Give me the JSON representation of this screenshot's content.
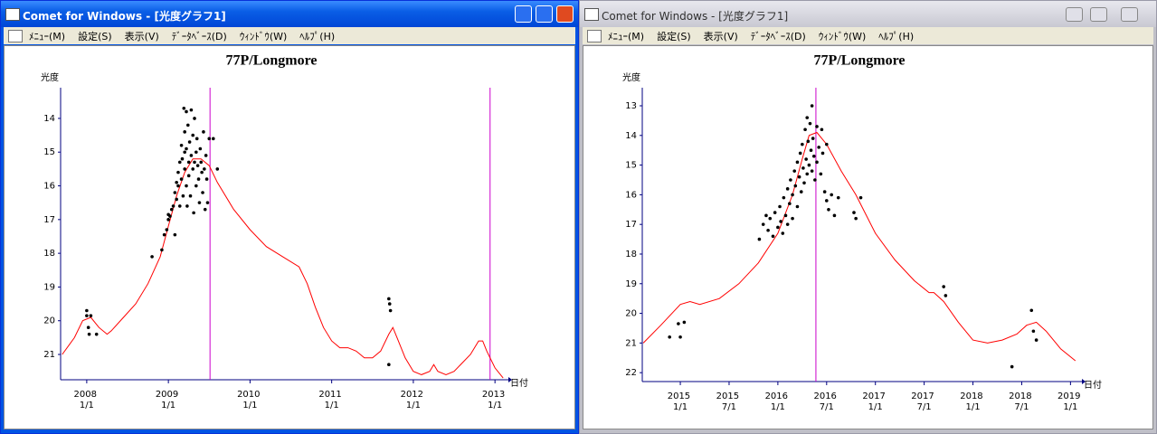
{
  "windows": [
    {
      "title": "Comet for Windows - [光度グラフ1]",
      "menu": [
        "ﾒﾆｭｰ(M)",
        "設定(S)",
        "表示(V)",
        "ﾃﾞｰﾀﾍﾞｰｽ(D)",
        "ｳｨﾝﾄﾞｳ(W)",
        "ﾍﾙﾌﾟ(H)"
      ]
    },
    {
      "title": "Comet for Windows - [光度グラフ1]",
      "menu": [
        "ﾒﾆｭｰ(M)",
        "設定(S)",
        "表示(V)",
        "ﾃﾞｰﾀﾍﾞｰｽ(D)",
        "ｳｨﾝﾄﾞｳ(W)",
        "ﾍﾙﾌﾟ(H)"
      ]
    }
  ],
  "chart_data": [
    {
      "type": "scatter",
      "title": "77P/Longmore",
      "y_label": "光度",
      "x_label": "日付",
      "xlim": [
        2007.68,
        2013.12
      ],
      "ylim": [
        21.75,
        13.09
      ],
      "xticks": [
        {
          "value": 2008,
          "label": "2008 1/1"
        },
        {
          "value": 2009,
          "label": "2009 1/1"
        },
        {
          "value": 2010,
          "label": "2010 1/1"
        },
        {
          "value": 2011,
          "label": "2011 1/1"
        },
        {
          "value": 2012,
          "label": "2012 1/1"
        },
        {
          "value": 2013,
          "label": "2013 1/1"
        }
      ],
      "yticks": [
        14,
        15,
        16,
        17,
        18,
        19,
        20,
        21
      ],
      "axis_color": "#000080",
      "color": "#000000",
      "x": [
        2008.0,
        2008.0,
        2008.02,
        2008.05,
        2008.03,
        2008.12,
        2008.8,
        2008.92,
        2008.95,
        2008.98,
        2009.0,
        2009.0,
        2009.02,
        2009.04,
        2009.06,
        2009.08,
        2009.08,
        2009.1,
        2009.1,
        2009.12,
        2009.12,
        2009.14,
        2009.14,
        2009.16,
        2009.16,
        2009.17,
        2009.18,
        2009.19,
        2009.2,
        2009.2,
        2009.2,
        2009.22,
        2009.22,
        2009.22,
        2009.23,
        2009.24,
        2009.25,
        2009.25,
        2009.26,
        2009.27,
        2009.28,
        2009.28,
        2009.3,
        2009.3,
        2009.31,
        2009.32,
        2009.32,
        2009.34,
        2009.34,
        2009.35,
        2009.36,
        2009.37,
        2009.38,
        2009.39,
        2009.4,
        2009.41,
        2009.42,
        2009.43,
        2009.44,
        2009.45,
        2009.46,
        2009.47,
        2009.48,
        2009.5,
        2009.55,
        2009.6,
        2011.7,
        2011.71,
        2011.72,
        2011.7
      ],
      "values": [
        19.7,
        19.85,
        20.2,
        19.85,
        20.4,
        20.4,
        18.1,
        17.9,
        17.45,
        17.3,
        17.0,
        16.85,
        16.9,
        16.7,
        16.6,
        16.2,
        17.45,
        15.9,
        16.4,
        15.6,
        16.0,
        15.3,
        16.6,
        14.8,
        15.8,
        15.2,
        16.3,
        13.7,
        14.4,
        15.0,
        15.5,
        13.8,
        14.9,
        16.0,
        16.6,
        14.2,
        15.3,
        15.7,
        14.7,
        16.3,
        13.75,
        15.1,
        14.5,
        15.5,
        16.8,
        14.0,
        15.3,
        15.0,
        16.0,
        14.6,
        15.4,
        15.8,
        16.5,
        14.9,
        15.3,
        15.6,
        16.2,
        14.4,
        15.5,
        16.7,
        15.1,
        15.8,
        16.5,
        14.6,
        14.6,
        15.5,
        19.35,
        19.5,
        19.7,
        21.3
      ],
      "curve": {
        "color": "#ff0000",
        "x": [
          2007.7,
          2007.85,
          2007.95,
          2008.05,
          2008.15,
          2008.25,
          2008.3,
          2008.45,
          2008.6,
          2008.75,
          2008.9,
          2009.0,
          2009.1,
          2009.2,
          2009.3,
          2009.4,
          2009.5,
          2009.6,
          2009.8,
          2010.0,
          2010.2,
          2010.4,
          2010.6,
          2010.7,
          2010.8,
          2010.9,
          2011.0,
          2011.1,
          2011.2,
          2011.3,
          2011.4,
          2011.5,
          2011.6,
          2011.7,
          2011.75,
          2011.8,
          2011.9,
          2012.0,
          2012.1,
          2012.2,
          2012.25,
          2012.3,
          2012.4,
          2012.5,
          2012.7,
          2012.8,
          2012.85,
          2012.9,
          2013.0,
          2013.1
        ],
        "values": [
          21.0,
          20.5,
          20.0,
          19.9,
          20.2,
          20.4,
          20.3,
          19.9,
          19.5,
          18.9,
          18.1,
          17.2,
          16.3,
          15.6,
          15.2,
          15.2,
          15.4,
          15.9,
          16.7,
          17.3,
          17.8,
          18.1,
          18.4,
          18.9,
          19.6,
          20.2,
          20.6,
          20.8,
          20.8,
          20.9,
          21.1,
          21.1,
          20.9,
          20.4,
          20.2,
          20.5,
          21.1,
          21.5,
          21.6,
          21.5,
          21.3,
          21.5,
          21.6,
          21.5,
          21.0,
          20.6,
          20.6,
          20.9,
          21.4,
          21.7
        ]
      },
      "vlines": {
        "color": "#cc00cc",
        "x": [
          2009.51,
          2012.94
        ]
      }
    },
    {
      "type": "scatter",
      "title": "77P/Longmore",
      "y_label": "光度",
      "x_label": "日付",
      "xlim": [
        2014.61,
        2019.08
      ],
      "ylim": [
        22.3,
        12.39
      ],
      "xticks": [
        {
          "value": 2015,
          "label": "2015 1/1"
        },
        {
          "value": 2015.5,
          "label": "2015 7/1"
        },
        {
          "value": 2016,
          "label": "2016 1/1"
        },
        {
          "value": 2016.5,
          "label": "2016 7/1"
        },
        {
          "value": 2017,
          "label": "2017 1/1"
        },
        {
          "value": 2017.5,
          "label": "2017 7/1"
        },
        {
          "value": 2018,
          "label": "2018 1/1"
        },
        {
          "value": 2018.5,
          "label": "2018 7/1"
        },
        {
          "value": 2019,
          "label": "2019 1/1"
        }
      ],
      "yticks": [
        13,
        14,
        15,
        16,
        17,
        18,
        19,
        20,
        21,
        22
      ],
      "axis_color": "#000080",
      "color": "#000000",
      "x": [
        2014.89,
        2014.98,
        2015.0,
        2015.04,
        2015.81,
        2015.85,
        2015.88,
        2015.9,
        2015.92,
        2015.95,
        2015.97,
        2016.0,
        2016.02,
        2016.03,
        2016.05,
        2016.06,
        2016.08,
        2016.1,
        2016.1,
        2016.12,
        2016.13,
        2016.15,
        2016.15,
        2016.17,
        2016.18,
        2016.2,
        2016.2,
        2016.22,
        2016.23,
        2016.24,
        2016.25,
        2016.26,
        2016.27,
        2016.28,
        2016.29,
        2016.3,
        2016.3,
        2016.31,
        2016.32,
        2016.33,
        2016.34,
        2016.35,
        2016.35,
        2016.36,
        2016.37,
        2016.38,
        2016.4,
        2016.4,
        2016.42,
        2016.44,
        2016.45,
        2016.46,
        2016.48,
        2016.5,
        2016.5,
        2016.52,
        2016.55,
        2016.58,
        2016.62,
        2016.78,
        2016.8,
        2016.85,
        2017.7,
        2017.72,
        2018.4,
        2018.6,
        2018.62,
        2018.65
      ],
      "values": [
        20.8,
        20.35,
        20.8,
        20.3,
        17.5,
        17.0,
        16.7,
        17.2,
        16.8,
        17.4,
        16.6,
        17.1,
        16.4,
        16.9,
        17.3,
        16.1,
        16.7,
        15.8,
        17.0,
        16.3,
        15.5,
        16.0,
        16.8,
        15.2,
        15.7,
        14.9,
        16.4,
        15.4,
        14.6,
        15.9,
        14.3,
        15.1,
        15.6,
        13.8,
        14.8,
        13.4,
        15.3,
        14.2,
        15.0,
        13.6,
        14.5,
        13.0,
        15.2,
        14.1,
        14.7,
        15.5,
        13.7,
        14.9,
        14.4,
        15.3,
        13.8,
        14.6,
        15.9,
        16.2,
        14.3,
        16.5,
        16.0,
        16.7,
        16.1,
        16.6,
        16.8,
        16.1,
        19.1,
        19.4,
        21.8,
        19.9,
        20.6,
        20.9
      ],
      "curve": {
        "color": "#ff0000",
        "x": [
          2014.62,
          2014.8,
          2015.0,
          2015.1,
          2015.2,
          2015.4,
          2015.6,
          2015.8,
          2016.0,
          2016.15,
          2016.25,
          2016.32,
          2016.4,
          2016.5,
          2016.65,
          2016.8,
          2017.0,
          2017.2,
          2017.4,
          2017.55,
          2017.6,
          2017.7,
          2017.85,
          2018.0,
          2018.15,
          2018.3,
          2018.45,
          2018.55,
          2018.65,
          2018.75,
          2018.9,
          2019.05
        ],
        "values": [
          21.0,
          20.4,
          19.7,
          19.6,
          19.7,
          19.5,
          19.0,
          18.3,
          17.3,
          16.0,
          14.8,
          14.0,
          13.9,
          14.3,
          15.2,
          16.0,
          17.3,
          18.2,
          18.9,
          19.3,
          19.3,
          19.6,
          20.3,
          20.9,
          21.0,
          20.9,
          20.7,
          20.4,
          20.3,
          20.6,
          21.2,
          21.6
        ]
      },
      "vlines": {
        "color": "#cc00cc",
        "x": [
          2016.39
        ]
      }
    }
  ]
}
